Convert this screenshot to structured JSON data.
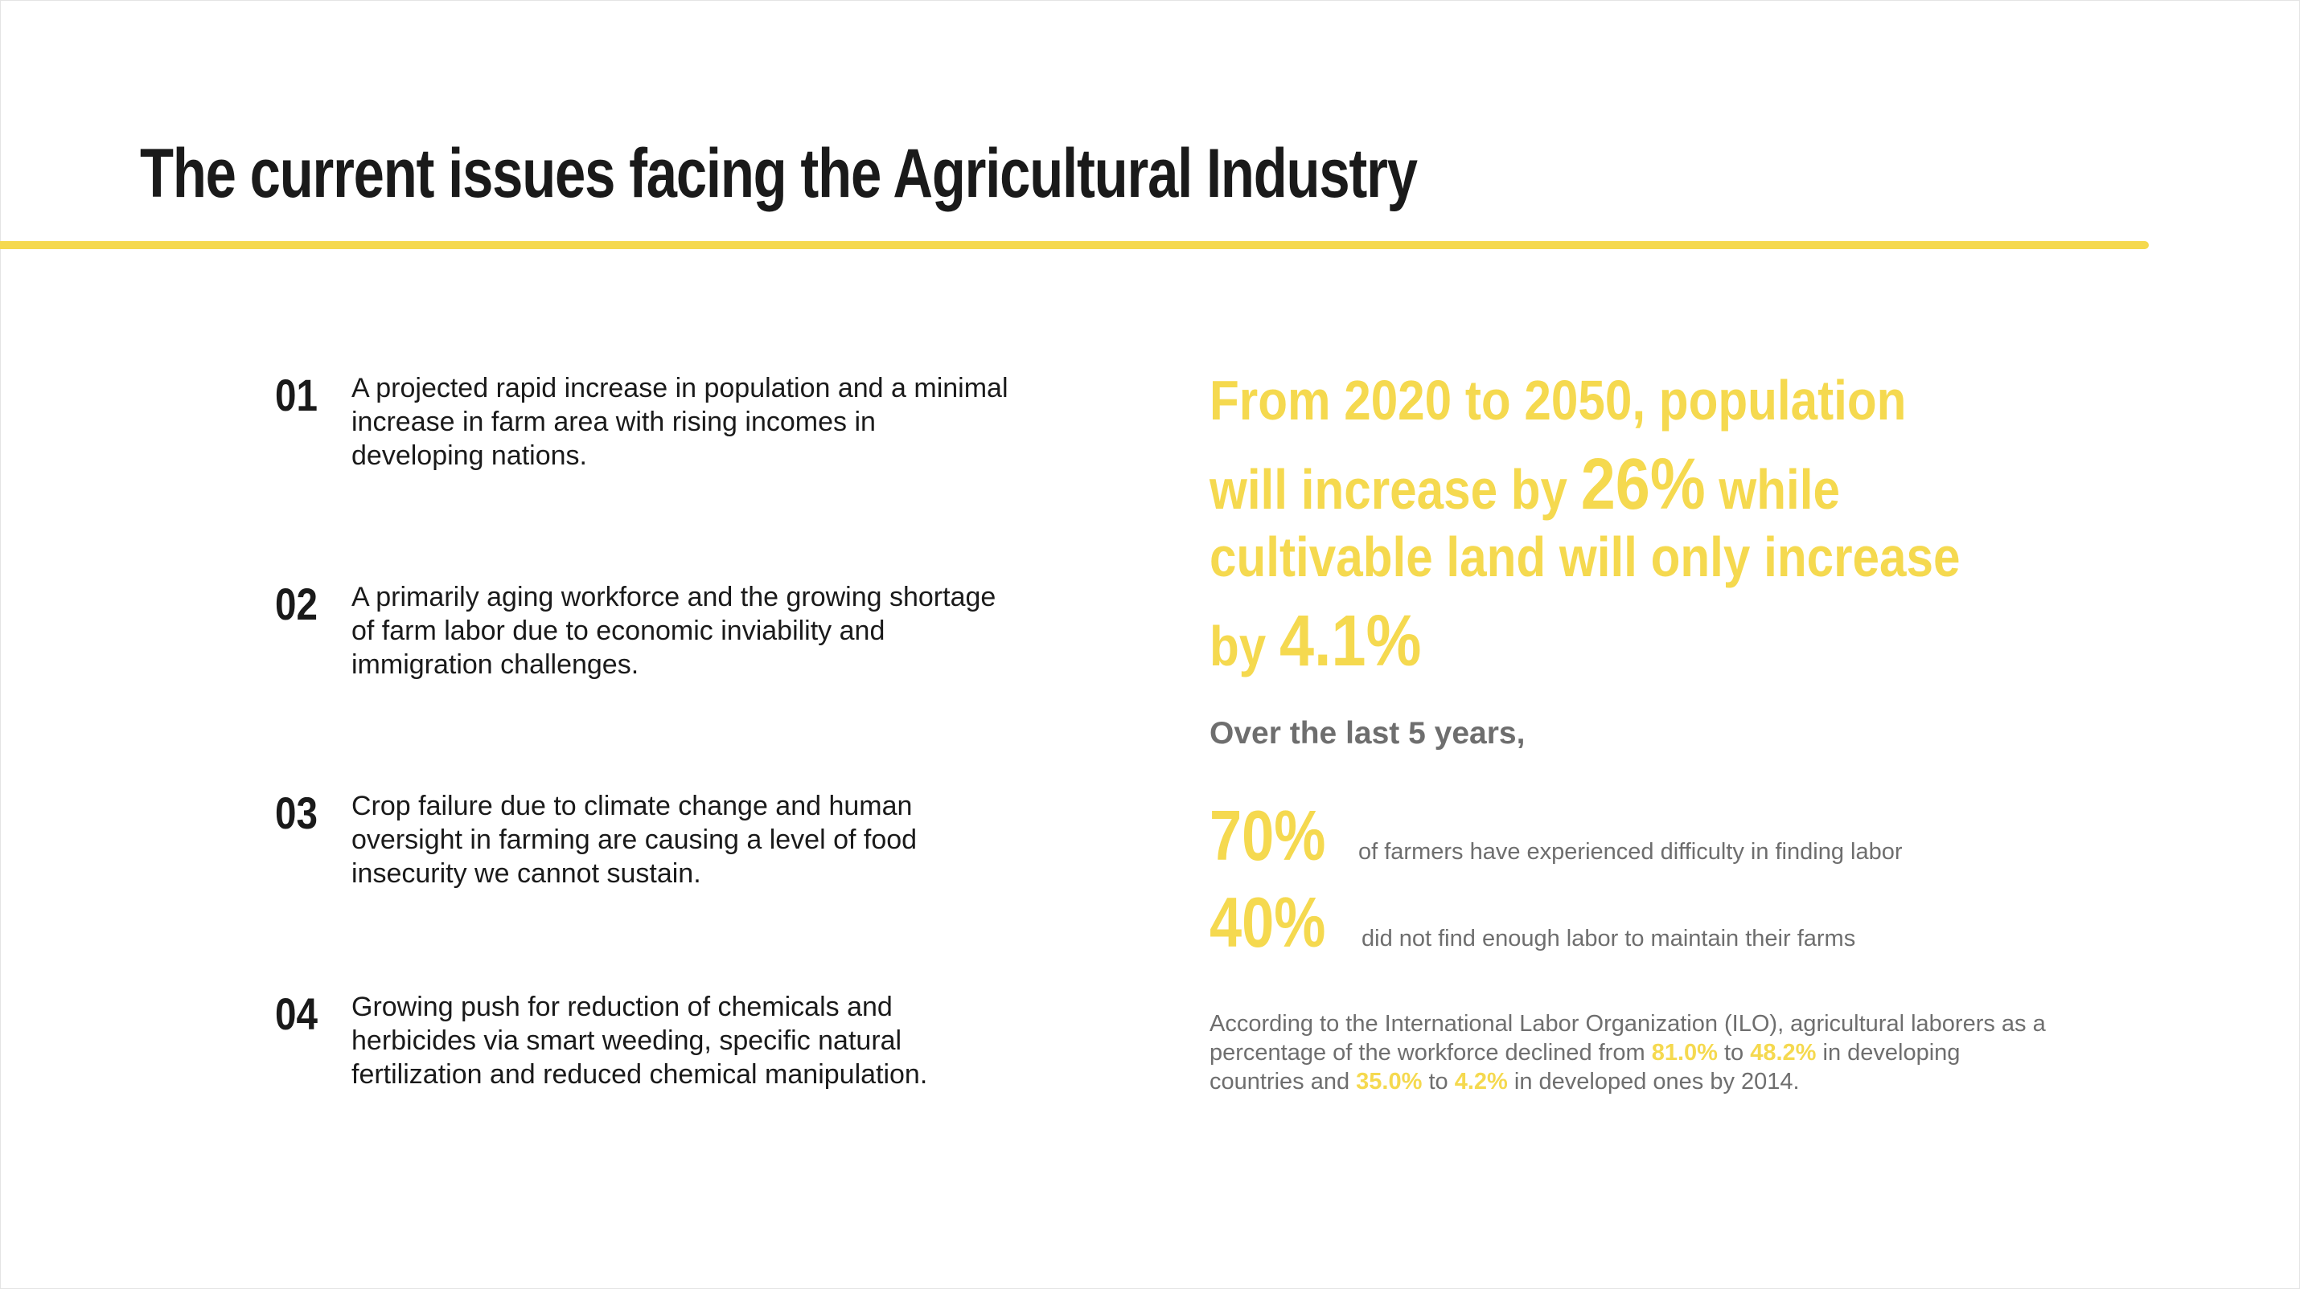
{
  "title": "The current issues facing the Agricultural Industry",
  "colors": {
    "accent": "#f5d94f",
    "text_dark": "#1a1a1a",
    "text_gray": "#6e6e6e"
  },
  "issues": [
    {
      "number": "01",
      "text": "A projected rapid increase in population and a minimal increase in farm area with rising incomes in developing nations."
    },
    {
      "number": "02",
      "text": "A primarily aging workforce and the growing shortage of farm labor due to economic inviability and immigration challenges."
    },
    {
      "number": "03",
      "text": "Crop failure due to climate change and human oversight in farming are causing a level of food insecurity we cannot sustain."
    },
    {
      "number": "04",
      "text": "Growing push for reduction of chemicals and herbicides via smart weeding, specific natural fertilization and reduced chemical manipulation."
    }
  ],
  "headline": {
    "line1": "From 2020 to 2050, population",
    "line2_pre": "will increase by ",
    "line2_pct": "26%",
    "line2_post": " while",
    "line3": "cultivable land will only increase",
    "line4_pre": "by ",
    "line4_pct": "4.1%"
  },
  "period": "Over the last 5 years,",
  "stats": [
    {
      "value": "70%",
      "label": "of farmers have experienced difficulty in finding labor"
    },
    {
      "value": "40%",
      "label": "did not find enough labor to maintain their farms"
    }
  ],
  "ilo": {
    "part1": "According to the International Labor Organization (ILO), agricultural laborers as a percentage of the workforce declined from ",
    "val1": "81.0%",
    "part2": " to ",
    "val2": "48.2%",
    "part3": " in developing countries and ",
    "val3": "35.0%",
    "part4": " to ",
    "val4": "4.2%",
    "part5": " in developed ones by 2014."
  }
}
